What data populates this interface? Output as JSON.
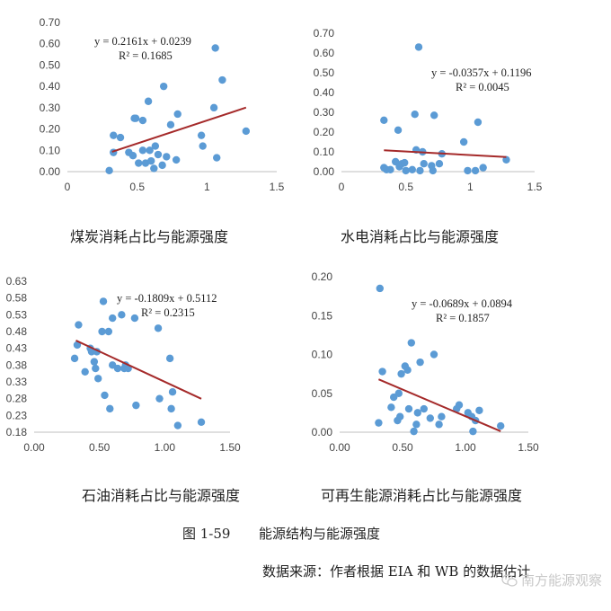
{
  "chart_data": [
    {
      "type": "scatter",
      "title": "煤炭消耗占比与能源强度",
      "xlim": [
        0,
        1.5
      ],
      "xticks": [
        "0",
        "0.5",
        "1",
        "1.5"
      ],
      "ylim": [
        0,
        0.7
      ],
      "yticks": [
        "0.00",
        "0.10",
        "0.20",
        "0.30",
        "0.40",
        "0.50",
        "0.60",
        "0.70"
      ],
      "equation": "y = 0.2161x + 0.0239",
      "r2": "R² = 0.1685",
      "trend": {
        "slope": 0.2161,
        "intercept": 0.0239,
        "x_range": [
          0.32,
          1.28
        ]
      },
      "points": [
        [
          0.3,
          0.005
        ],
        [
          0.33,
          0.17
        ],
        [
          0.33,
          0.09
        ],
        [
          0.38,
          0.16
        ],
        [
          0.44,
          0.09
        ],
        [
          0.47,
          0.075
        ],
        [
          0.48,
          0.25
        ],
        [
          0.49,
          0.25
        ],
        [
          0.51,
          0.04
        ],
        [
          0.54,
          0.24
        ],
        [
          0.54,
          0.1
        ],
        [
          0.56,
          0.04
        ],
        [
          0.58,
          0.33
        ],
        [
          0.59,
          0.1
        ],
        [
          0.6,
          0.05
        ],
        [
          0.62,
          0.015
        ],
        [
          0.63,
          0.12
        ],
        [
          0.65,
          0.08
        ],
        [
          0.68,
          0.03
        ],
        [
          0.69,
          0.4
        ],
        [
          0.71,
          0.07
        ],
        [
          0.74,
          0.22
        ],
        [
          0.78,
          0.055
        ],
        [
          0.79,
          0.27
        ],
        [
          0.96,
          0.17
        ],
        [
          0.97,
          0.12
        ],
        [
          1.05,
          0.3
        ],
        [
          1.06,
          0.58
        ],
        [
          1.07,
          0.065
        ],
        [
          1.11,
          0.43
        ],
        [
          1.28,
          0.19
        ]
      ]
    },
    {
      "type": "scatter",
      "title": "水电消耗占比与能源强度",
      "xlim": [
        0,
        1.5
      ],
      "xticks": [
        "0",
        "0.5",
        "1",
        "1.5"
      ],
      "ylim": [
        0,
        0.7
      ],
      "yticks": [
        "0.00",
        "0.10",
        "0.20",
        "0.30",
        "0.40",
        "0.50",
        "0.60",
        "0.70"
      ],
      "equation": "y = -0.0357x + 0.1196",
      "r2": "R² = 0.0045",
      "trend": {
        "slope": -0.0357,
        "intercept": 0.1196,
        "x_range": [
          0.33,
          1.28
        ]
      },
      "points": [
        [
          0.33,
          0.26
        ],
        [
          0.33,
          0.02
        ],
        [
          0.35,
          0.01
        ],
        [
          0.38,
          0.01
        ],
        [
          0.42,
          0.05
        ],
        [
          0.44,
          0.21
        ],
        [
          0.45,
          0.025
        ],
        [
          0.47,
          0.04
        ],
        [
          0.49,
          0.045
        ],
        [
          0.5,
          0.005
        ],
        [
          0.55,
          0.01
        ],
        [
          0.57,
          0.29
        ],
        [
          0.58,
          0.11
        ],
        [
          0.6,
          0.63
        ],
        [
          0.61,
          0.005
        ],
        [
          0.63,
          0.1
        ],
        [
          0.64,
          0.04
        ],
        [
          0.7,
          0.03
        ],
        [
          0.71,
          0.005
        ],
        [
          0.72,
          0.285
        ],
        [
          0.76,
          0.04
        ],
        [
          0.78,
          0.09
        ],
        [
          0.95,
          0.15
        ],
        [
          0.98,
          0.005
        ],
        [
          1.04,
          0.005
        ],
        [
          1.06,
          0.25
        ],
        [
          1.1,
          0.02
        ],
        [
          1.28,
          0.06
        ]
      ]
    },
    {
      "type": "scatter",
      "title": "石油消耗占比与能源强度",
      "xlim": [
        0,
        1.5
      ],
      "xticks": [
        "0.00",
        "0.50",
        "1.00",
        "1.50"
      ],
      "ylim": [
        0.18,
        0.63
      ],
      "yticks": [
        "0.18",
        "0.23",
        "0.28",
        "0.33",
        "0.38",
        "0.43",
        "0.48",
        "0.53",
        "0.58",
        "0.63"
      ],
      "equation": "y = -0.1809x + 0.5112",
      "r2": "R² = 0.2315",
      "trend": {
        "slope": -0.1809,
        "intercept": 0.5112,
        "x_range": [
          0.32,
          1.28
        ]
      },
      "points": [
        [
          0.31,
          0.4
        ],
        [
          0.33,
          0.44
        ],
        [
          0.34,
          0.5
        ],
        [
          0.39,
          0.36
        ],
        [
          0.43,
          0.43
        ],
        [
          0.44,
          0.42
        ],
        [
          0.46,
          0.39
        ],
        [
          0.47,
          0.37
        ],
        [
          0.48,
          0.42
        ],
        [
          0.49,
          0.34
        ],
        [
          0.52,
          0.48
        ],
        [
          0.53,
          0.57
        ],
        [
          0.54,
          0.29
        ],
        [
          0.57,
          0.48
        ],
        [
          0.58,
          0.25
        ],
        [
          0.6,
          0.52
        ],
        [
          0.6,
          0.38
        ],
        [
          0.64,
          0.37
        ],
        [
          0.67,
          0.53
        ],
        [
          0.69,
          0.37
        ],
        [
          0.7,
          0.38
        ],
        [
          0.72,
          0.37
        ],
        [
          0.77,
          0.52
        ],
        [
          0.78,
          0.26
        ],
        [
          0.95,
          0.49
        ],
        [
          0.96,
          0.28
        ],
        [
          1.04,
          0.4
        ],
        [
          1.05,
          0.25
        ],
        [
          1.06,
          0.3
        ],
        [
          1.1,
          0.2
        ],
        [
          1.28,
          0.21
        ]
      ]
    },
    {
      "type": "scatter",
      "title": "可再生能源消耗占比与能源强度",
      "xlim": [
        0,
        1.5
      ],
      "xticks": [
        "0.00",
        "0.50",
        "1.00",
        "1.50"
      ],
      "ylim": [
        0,
        0.2
      ],
      "yticks": [
        "0.00",
        "0.05",
        "0.10",
        "0.15",
        "0.20"
      ],
      "equation": "y = -0.0689x + 0.0894",
      "r2": "R² = 0.1857",
      "trend": {
        "slope": -0.0689,
        "intercept": 0.0894,
        "x_range": [
          0.31,
          1.28
        ]
      },
      "points": [
        [
          0.31,
          0.012
        ],
        [
          0.32,
          0.185
        ],
        [
          0.34,
          0.078
        ],
        [
          0.41,
          0.032
        ],
        [
          0.43,
          0.045
        ],
        [
          0.46,
          0.015
        ],
        [
          0.47,
          0.05
        ],
        [
          0.48,
          0.02
        ],
        [
          0.49,
          0.075
        ],
        [
          0.52,
          0.085
        ],
        [
          0.54,
          0.08
        ],
        [
          0.55,
          0.03
        ],
        [
          0.57,
          0.115
        ],
        [
          0.59,
          0.001
        ],
        [
          0.61,
          0.01
        ],
        [
          0.62,
          0.025
        ],
        [
          0.64,
          0.09
        ],
        [
          0.67,
          0.03
        ],
        [
          0.72,
          0.018
        ],
        [
          0.75,
          0.1
        ],
        [
          0.79,
          0.01
        ],
        [
          0.81,
          0.02
        ],
        [
          0.93,
          0.03
        ],
        [
          0.95,
          0.035
        ],
        [
          1.02,
          0.025
        ],
        [
          1.05,
          0.02
        ],
        [
          1.06,
          0.001
        ],
        [
          1.08,
          0.015
        ],
        [
          1.11,
          0.028
        ],
        [
          1.28,
          0.008
        ]
      ]
    }
  ],
  "figure": {
    "number": "图 1-59",
    "title": "能源结构与能源强度",
    "source": "数据来源：作者根据 EIA 和 WB 的数据估计"
  },
  "watermark": {
    "text": "南方能源观察",
    "icon": "wechat-icon"
  },
  "colors": {
    "points": "#5b9bd5",
    "trendline": "#a52a2a",
    "axis": "#bfbfbf"
  }
}
